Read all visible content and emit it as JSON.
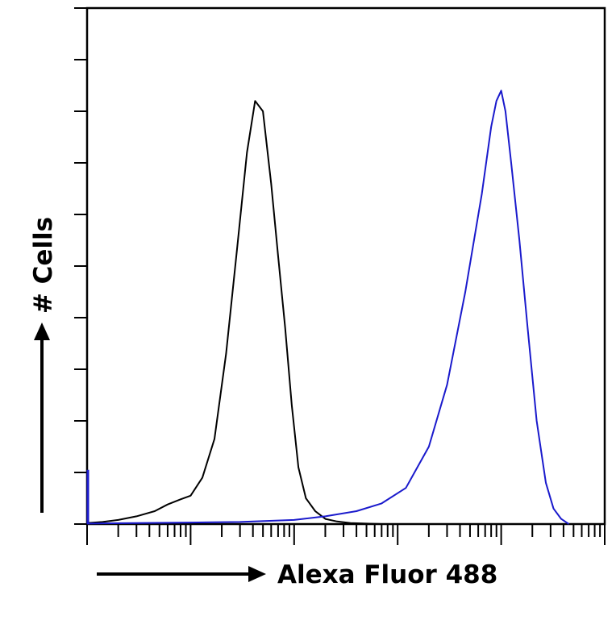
{
  "chart_data": {
    "type": "line",
    "title": "",
    "xlabel": "Alexa Fluor 488",
    "ylabel": "# Cells",
    "x_scale": "log",
    "xlim": [
      1,
      100000
    ],
    "ylim": [
      0,
      100
    ],
    "grid": false,
    "legend": "none",
    "series": [
      {
        "color": "#000000",
        "x": [
          1.0,
          1.4,
          2.0,
          3.0,
          4.5,
          6.0,
          8.0,
          10.0,
          13.0,
          17.0,
          22.0,
          28.0,
          35.0,
          42.0,
          50.0,
          60.0,
          70.0,
          82.0,
          95.0,
          110.0,
          130.0,
          160.0,
          200.0,
          260.0,
          350.0,
          500.0,
          700.0
        ],
        "y": [
          0.2,
          0.4,
          0.8,
          1.5,
          2.5,
          3.8,
          4.8,
          5.5,
          9.0,
          16.5,
          33.0,
          53.0,
          72.0,
          82.0,
          80.0,
          66.0,
          52.0,
          38.0,
          23.0,
          11.0,
          5.0,
          2.5,
          1.0,
          0.5,
          0.2,
          0.1,
          0.0
        ]
      },
      {
        "color": "#1a1acc",
        "x": [
          1.0,
          3.0,
          10.0,
          30.0,
          100.0,
          200.0,
          400.0,
          700.0,
          1200.0,
          2000.0,
          3000.0,
          4500.0,
          6500.0,
          8000.0,
          9000.0,
          10000.0,
          11000.0,
          12500.0,
          15000.0,
          18000.0,
          22000.0,
          27000.0,
          32000.0,
          38000.0,
          45000.0
        ],
        "y": [
          0.1,
          0.2,
          0.3,
          0.4,
          0.8,
          1.5,
          2.5,
          4.0,
          7.0,
          15.0,
          27.0,
          45.0,
          64.0,
          77.0,
          82.0,
          84.0,
          80.0,
          70.0,
          55.0,
          38.0,
          20.0,
          8.0,
          3.0,
          1.0,
          0.0
        ]
      }
    ]
  }
}
